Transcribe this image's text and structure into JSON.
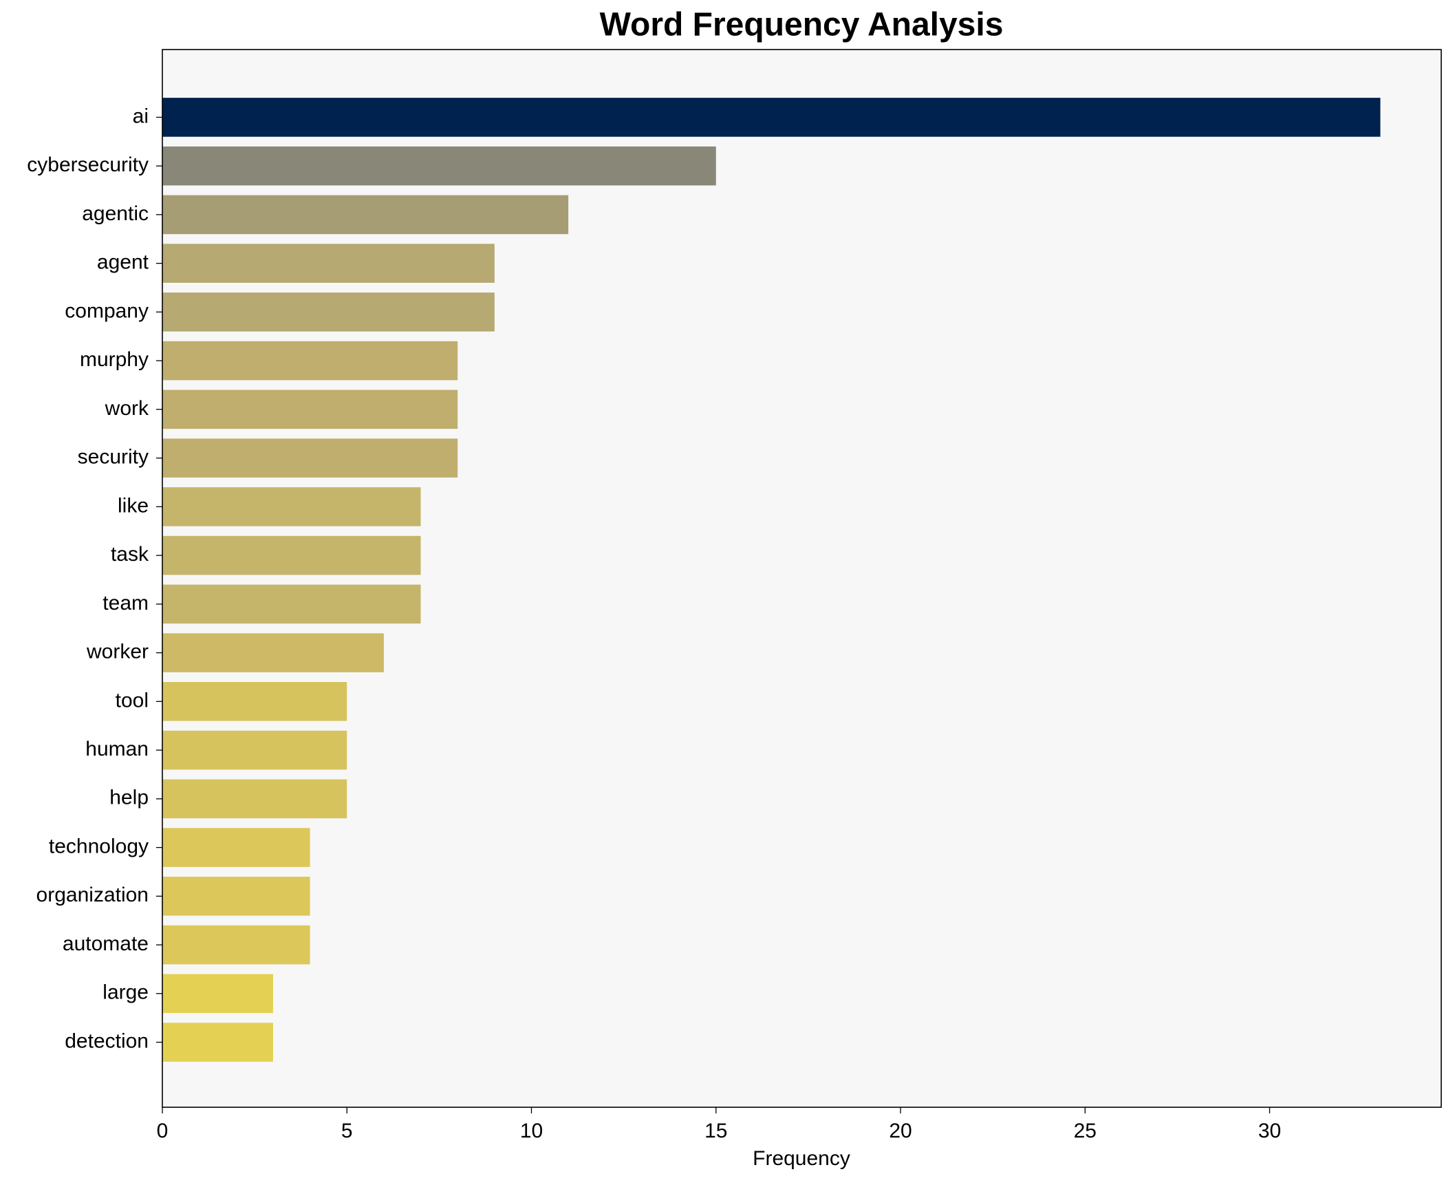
{
  "chart_data": {
    "type": "barh",
    "title": "Word Frequency Analysis",
    "x_label": "Frequency",
    "categories": [
      "ai",
      "cybersecurity",
      "agentic",
      "agent",
      "company",
      "murphy",
      "work",
      "security",
      "like",
      "task",
      "team",
      "worker",
      "tool",
      "human",
      "help",
      "technology",
      "organization",
      "automate",
      "large",
      "detection"
    ],
    "values": [
      33,
      15,
      11,
      9,
      9,
      8,
      8,
      8,
      7,
      7,
      7,
      6,
      5,
      5,
      5,
      4,
      4,
      4,
      3,
      3
    ],
    "colors": [
      "#00224e",
      "#898778",
      "#a69d75",
      "#b6a971",
      "#b6a971",
      "#bfae6d",
      "#bfae6d",
      "#bfae6d",
      "#c5b56b",
      "#c5b56b",
      "#c5b56b",
      "#cdb966",
      "#d7c35e",
      "#d7c35e",
      "#d7c35e",
      "#dcc75b",
      "#dcc75b",
      "#dcc75b",
      "#e4d153",
      "#e4d153"
    ],
    "xlim": [
      0,
      34.65
    ],
    "xticks": [
      0,
      5,
      10,
      15,
      20,
      25,
      30
    ],
    "grid": false
  }
}
